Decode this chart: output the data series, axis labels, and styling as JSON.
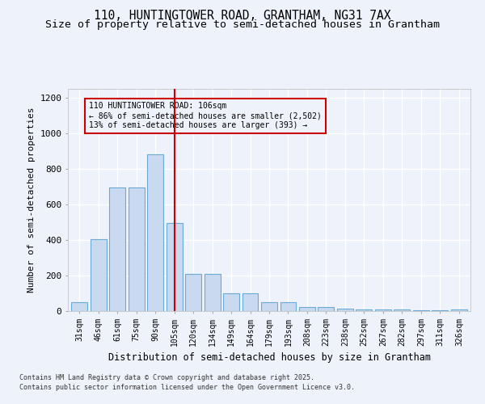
{
  "title_line1": "110, HUNTINGTOWER ROAD, GRANTHAM, NG31 7AX",
  "title_line2": "Size of property relative to semi-detached houses in Grantham",
  "xlabel": "Distribution of semi-detached houses by size in Grantham",
  "ylabel": "Number of semi-detached properties",
  "categories": [
    "31sqm",
    "46sqm",
    "61sqm",
    "75sqm",
    "90sqm",
    "105sqm",
    "120sqm",
    "134sqm",
    "149sqm",
    "164sqm",
    "179sqm",
    "193sqm",
    "208sqm",
    "223sqm",
    "238sqm",
    "252sqm",
    "267sqm",
    "282sqm",
    "297sqm",
    "311sqm",
    "326sqm"
  ],
  "values": [
    50,
    405,
    695,
    695,
    880,
    495,
    210,
    210,
    100,
    100,
    50,
    50,
    25,
    25,
    15,
    10,
    8,
    8,
    5,
    5,
    10
  ],
  "bar_color": "#c8d9f0",
  "bar_edge_color": "#6aaad4",
  "vline_color": "#cc0000",
  "annotation_title": "110 HUNTINGTOWER ROAD: 106sqm",
  "annotation_line2": "← 86% of semi-detached houses are smaller (2,502)",
  "annotation_line3": "13% of semi-detached houses are larger (393) →",
  "annotation_box_color": "#cc0000",
  "ylim": [
    0,
    1250
  ],
  "yticks": [
    0,
    200,
    400,
    600,
    800,
    1000,
    1200
  ],
  "footnote1": "Contains HM Land Registry data © Crown copyright and database right 2025.",
  "footnote2": "Contains public sector information licensed under the Open Government Licence v3.0.",
  "bg_color": "#eef2fb",
  "grid_color": "#ffffff",
  "title_fontsize": 10.5,
  "subtitle_fontsize": 9.5
}
